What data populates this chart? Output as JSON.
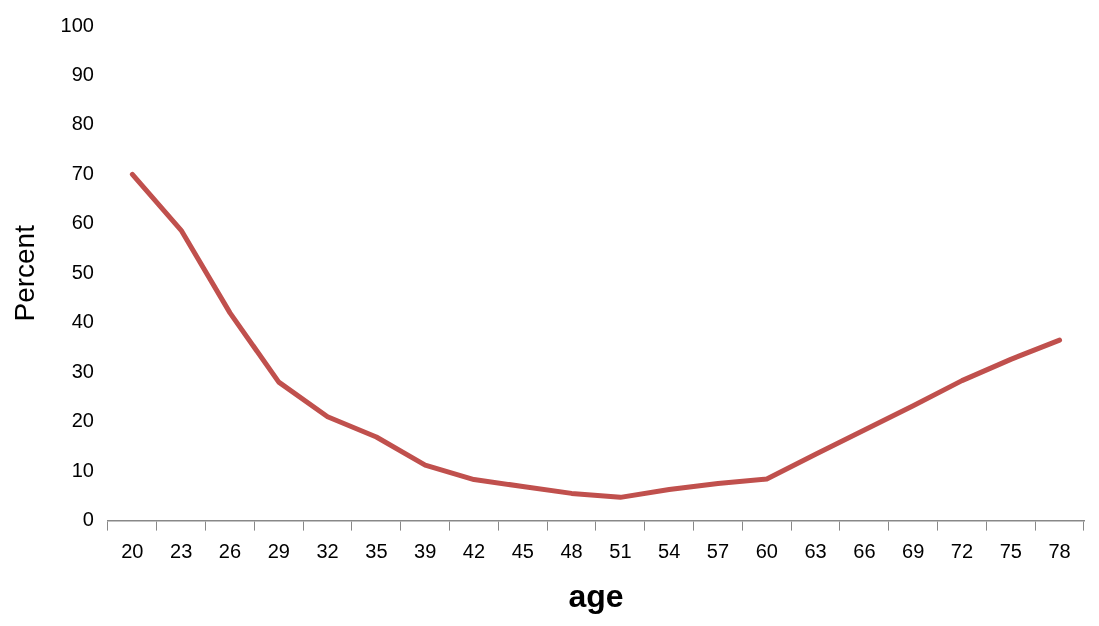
{
  "chart_data": {
    "type": "line",
    "xlabel": "age",
    "ylabel": "Percent",
    "categories": [
      "20",
      "23",
      "26",
      "29",
      "32",
      "35",
      "39",
      "42",
      "45",
      "48",
      "51",
      "54",
      "57",
      "60",
      "63",
      "66",
      "69",
      "72",
      "75",
      "78"
    ],
    "series": [
      {
        "color": "#c0504d",
        "values": [
          70,
          58.7,
          42,
          28,
          21,
          16.9,
          11.2,
          8.3,
          6.9,
          5.5,
          4.7,
          6.3,
          7.5,
          8.4,
          13.4,
          18.3,
          23.2,
          28.3,
          32.6,
          36.5
        ]
      }
    ],
    "ylim": [
      0,
      100
    ],
    "yticks": [
      0,
      10,
      20,
      30,
      40,
      50,
      60,
      70,
      80,
      90,
      100
    ],
    "grid": false,
    "legend": false,
    "marker": "none",
    "line_style": "solid"
  }
}
